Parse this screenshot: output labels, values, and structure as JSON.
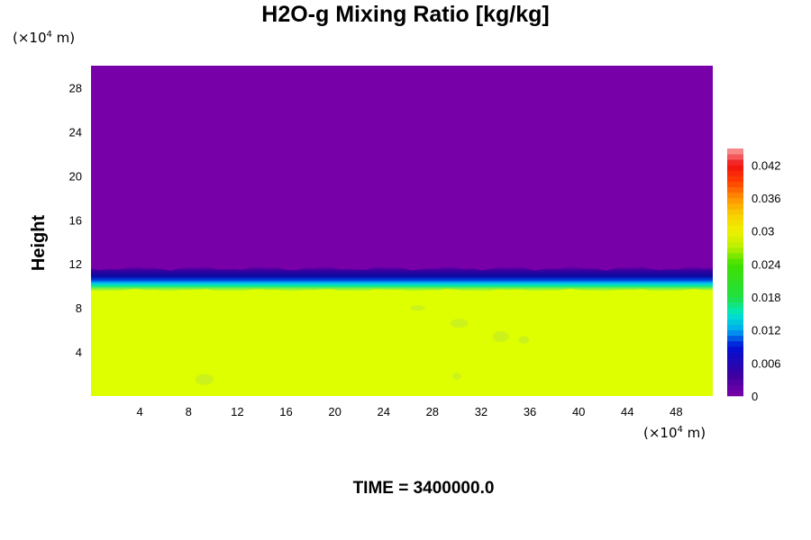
{
  "chart_data": {
    "type": "heatmap",
    "title": "H2O-g Mixing Ratio [kg/kg]",
    "ylabel": "Height",
    "xlabel": "",
    "x_unit": {
      "prefix": "(×10",
      "exp": "4",
      "suffix": " m)"
    },
    "y_unit": {
      "prefix": "(×10",
      "exp": "4",
      "suffix": " m)"
    },
    "xlim": [
      0,
      51
    ],
    "ylim": [
      0,
      30
    ],
    "x_ticks": [
      4,
      8,
      12,
      16,
      20,
      24,
      28,
      32,
      36,
      40,
      44,
      48
    ],
    "y_ticks": [
      4,
      8,
      12,
      16,
      20,
      24,
      28
    ],
    "fields": [
      {
        "region": "upper",
        "y_range": [
          10.8,
          30
        ],
        "value": 0.0,
        "color": "#7800a8"
      },
      {
        "region": "transition",
        "y_range": [
          9.6,
          11.6
        ],
        "value_range": [
          0.0,
          0.03
        ]
      },
      {
        "region": "lower",
        "y_range": [
          0,
          9.8
        ],
        "value": 0.029,
        "color": "#deff00"
      }
    ],
    "colorbar": {
      "min": 0,
      "max": 0.045,
      "tick_values": [
        0,
        0.006,
        0.012,
        0.018,
        0.024,
        0.03,
        0.036,
        0.042
      ],
      "tick_labels": [
        "0",
        "0.006",
        "0.012",
        "0.018",
        "0.024",
        "0.03",
        "0.036",
        "0.042"
      ]
    },
    "grid": false
  },
  "footer": {
    "time_label": "TIME = 3400000.0"
  }
}
